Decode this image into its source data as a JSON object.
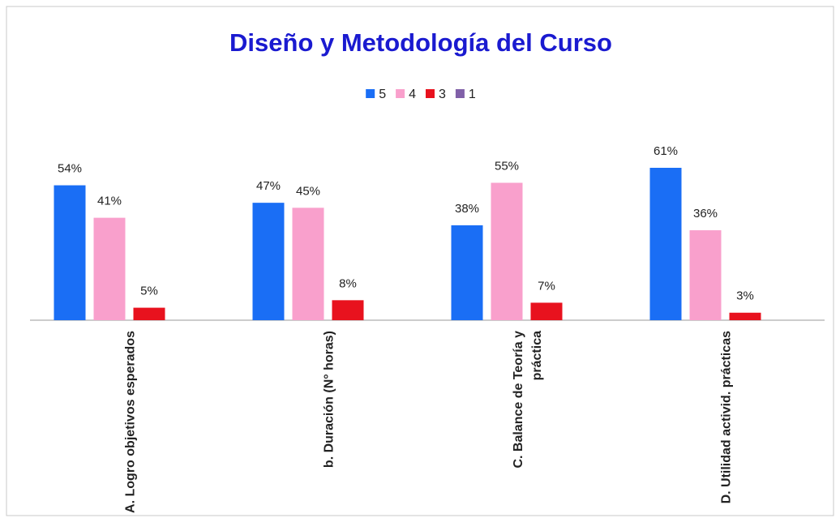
{
  "chart_data": {
    "type": "bar",
    "title": "Diseño y Metodología del Curso",
    "categories": [
      "A. Logro objetivos esperados",
      "b. Duración (N° horas)",
      "C. Balance de Teoría y práctica",
      "D. Utilidad activid. prácticas"
    ],
    "series": [
      {
        "name": "5",
        "color": "#1a6ef5",
        "values": [
          54,
          47,
          38,
          61
        ],
        "value_labels": [
          "54%",
          "47%",
          "38%",
          "61%"
        ]
      },
      {
        "name": "4",
        "color": "#f9a0cc",
        "values": [
          41,
          45,
          55,
          36
        ],
        "value_labels": [
          "41%",
          "45%",
          "55%",
          "36%"
        ]
      },
      {
        "name": "3",
        "color": "#e8121e",
        "values": [
          5,
          8,
          7,
          3
        ],
        "value_labels": [
          "5%",
          "8%",
          "7%",
          "3%"
        ]
      },
      {
        "name": "1",
        "color": "#8060a8",
        "values": [
          null,
          null,
          null,
          null
        ]
      }
    ],
    "legend": "top"
  }
}
